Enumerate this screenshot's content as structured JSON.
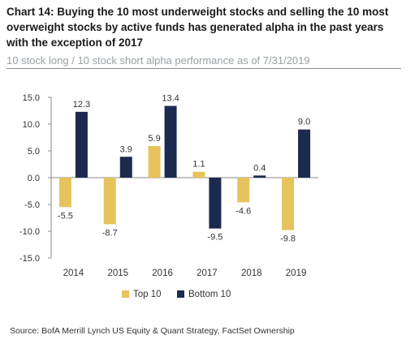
{
  "header": {
    "title": "Chart 14: Buying the 10 most underweight stocks and selling the 10 most overweight stocks by active funds has generated alpha in the past years with the exception of 2017",
    "subtitle": "10 stock long / 10 stock short alpha performance as of 7/31/2019"
  },
  "footer": {
    "source": "Source: BofA Merrill Lynch US Equity & Quant Strategy, FactSet Ownership"
  },
  "colors": {
    "top10": "#e6c35c",
    "bottom10": "#1b2a4e",
    "axis": "#888888",
    "text": "#333333"
  },
  "chart_data": {
    "type": "bar",
    "categories": [
      "2014",
      "2015",
      "2016",
      "2017",
      "2018",
      "2019"
    ],
    "series": [
      {
        "name": "Top 10",
        "values": [
          -5.5,
          -8.7,
          5.9,
          1.1,
          -4.6,
          -9.8
        ],
        "labels": [
          "-5.5",
          "-8.7",
          "5.9",
          "1.1",
          "-4.6",
          "-9.8"
        ]
      },
      {
        "name": "Bottom 10",
        "values": [
          12.3,
          3.9,
          13.4,
          -9.5,
          0.4,
          9.0
        ],
        "labels": [
          "12.3",
          "3.9",
          "13.4",
          "-9.5",
          "0.4",
          "9.0"
        ]
      }
    ],
    "ylim": [
      -15,
      15
    ],
    "yticks": [
      "15.0",
      "10.0",
      "5.0",
      "0.0",
      "-5.0",
      "-10.0",
      "-15.0"
    ],
    "legend": "bottom",
    "grid": false
  }
}
